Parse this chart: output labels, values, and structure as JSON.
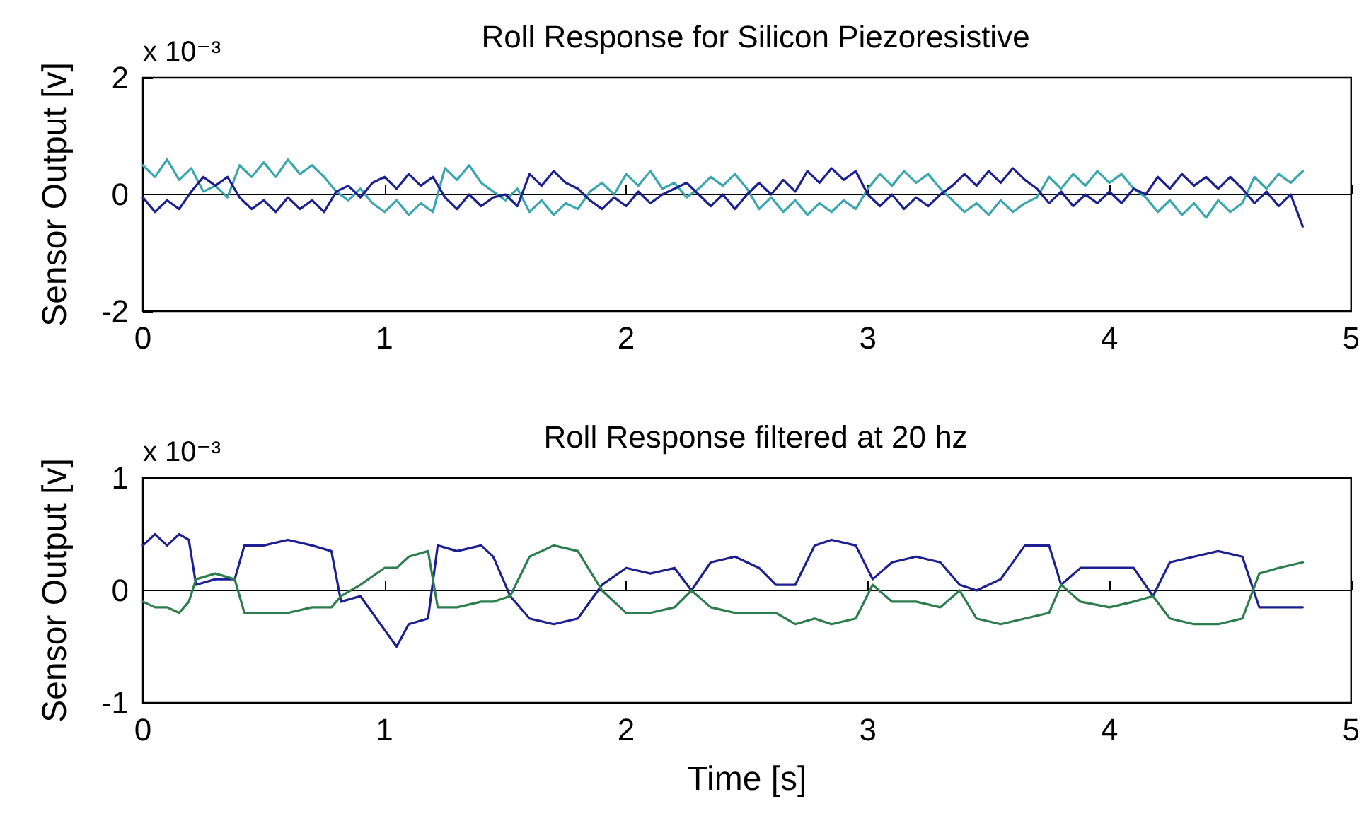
{
  "chart_data": [
    {
      "type": "line",
      "title": "Roll Response for Silicon Piezoresistive",
      "ylabel": "Sensor Output [v]",
      "annotations": [
        "x 10⁻³"
      ],
      "xlim": [
        0,
        5
      ],
      "xticks": [
        0,
        1,
        2,
        3,
        4,
        5
      ],
      "ylim": [
        -2,
        2
      ],
      "yticks": [
        -2,
        0,
        2
      ],
      "x": [
        0,
        0.05,
        0.1,
        0.15,
        0.2,
        0.25,
        0.3,
        0.35,
        0.4,
        0.45,
        0.5,
        0.55,
        0.6,
        0.65,
        0.7,
        0.75,
        0.8,
        0.85,
        0.9,
        0.95,
        1,
        1.05,
        1.1,
        1.15,
        1.2,
        1.25,
        1.3,
        1.35,
        1.4,
        1.45,
        1.5,
        1.55,
        1.6,
        1.65,
        1.7,
        1.75,
        1.8,
        1.85,
        1.9,
        1.95,
        2,
        2.05,
        2.1,
        2.15,
        2.2,
        2.25,
        2.3,
        2.35,
        2.4,
        2.45,
        2.5,
        2.55,
        2.6,
        2.65,
        2.7,
        2.75,
        2.8,
        2.85,
        2.9,
        2.95,
        3,
        3.05,
        3.1,
        3.15,
        3.2,
        3.25,
        3.3,
        3.35,
        3.4,
        3.45,
        3.5,
        3.55,
        3.6,
        3.65,
        3.7,
        3.75,
        3.8,
        3.85,
        3.9,
        3.95,
        4,
        4.05,
        4.1,
        4.15,
        4.2,
        4.25,
        4.3,
        4.35,
        4.4,
        4.45,
        4.5,
        4.55,
        4.6,
        4.65,
        4.7,
        4.75,
        4.8
      ],
      "series": [
        {
          "color": "#3aa6b0",
          "values": [
            0.5,
            0.3,
            0.6,
            0.25,
            0.45,
            0.05,
            0.15,
            -0.05,
            0.5,
            0.3,
            0.55,
            0.3,
            0.6,
            0.35,
            0.5,
            0.3,
            0.05,
            -0.1,
            0.1,
            -0.15,
            -0.3,
            -0.1,
            -0.35,
            -0.15,
            -0.3,
            0.45,
            0.25,
            0.5,
            0.2,
            0.05,
            -0.1,
            0.1,
            -0.3,
            -0.1,
            -0.35,
            -0.15,
            -0.25,
            0.05,
            0.2,
            0.0,
            0.35,
            0.15,
            0.4,
            0.1,
            0.2,
            -0.05,
            0.1,
            0.3,
            0.15,
            0.35,
            0.1,
            -0.25,
            -0.05,
            -0.3,
            -0.1,
            -0.35,
            -0.15,
            -0.3,
            -0.1,
            -0.25,
            0.1,
            0.35,
            0.15,
            0.4,
            0.2,
            0.35,
            0.1,
            -0.1,
            -0.3,
            -0.15,
            -0.35,
            -0.1,
            -0.3,
            -0.15,
            -0.05,
            0.3,
            0.1,
            0.35,
            0.15,
            0.4,
            0.2,
            0.35,
            0.1,
            -0.05,
            -0.3,
            -0.1,
            -0.35,
            -0.15,
            -0.4,
            -0.1,
            -0.3,
            -0.15,
            0.3,
            0.1,
            0.35,
            0.2,
            0.4
          ]
        },
        {
          "color": "#1c2090",
          "values": [
            -0.05,
            -0.3,
            -0.1,
            -0.25,
            0.05,
            0.3,
            0.15,
            0.3,
            -0.05,
            -0.25,
            -0.1,
            -0.3,
            -0.05,
            -0.25,
            -0.1,
            -0.3,
            0.05,
            0.15,
            -0.05,
            0.2,
            0.3,
            0.1,
            0.35,
            0.15,
            0.3,
            -0.05,
            -0.25,
            0.0,
            -0.2,
            -0.05,
            0.0,
            -0.2,
            0.35,
            0.15,
            0.4,
            0.2,
            0.1,
            -0.1,
            -0.25,
            -0.05,
            -0.2,
            0.05,
            -0.15,
            0.0,
            0.1,
            0.2,
            0.0,
            -0.2,
            0.0,
            -0.25,
            0.0,
            0.2,
            0.0,
            0.25,
            0.05,
            0.4,
            0.2,
            0.45,
            0.25,
            0.4,
            0.0,
            -0.2,
            0.0,
            -0.25,
            -0.05,
            -0.2,
            0.0,
            0.15,
            0.35,
            0.15,
            0.4,
            0.2,
            0.45,
            0.25,
            0.1,
            -0.15,
            0.05,
            -0.2,
            0.0,
            -0.15,
            0.05,
            -0.15,
            0.1,
            0.0,
            0.3,
            0.1,
            0.35,
            0.15,
            0.3,
            0.1,
            0.3,
            0.1,
            -0.15,
            0.05,
            -0.2,
            0.0,
            -0.55
          ]
        }
      ]
    },
    {
      "type": "line",
      "title": "Roll Response filtered at 20 hz",
      "xlabel": "Time [s]",
      "ylabel": "Sensor Output [v]",
      "annotations": [
        "x 10⁻³"
      ],
      "xlim": [
        0,
        5
      ],
      "xticks": [
        0,
        1,
        2,
        3,
        4,
        5
      ],
      "ylim": [
        -1,
        1
      ],
      "yticks": [
        -1,
        0,
        1
      ],
      "x": [
        0,
        0.05,
        0.1,
        0.15,
        0.19,
        0.22,
        0.3,
        0.38,
        0.42,
        0.5,
        0.6,
        0.7,
        0.78,
        0.82,
        0.9,
        1.0,
        1.05,
        1.1,
        1.18,
        1.22,
        1.3,
        1.4,
        1.45,
        1.52,
        1.6,
        1.7,
        1.8,
        1.9,
        2.0,
        2.1,
        2.2,
        2.27,
        2.35,
        2.45,
        2.55,
        2.62,
        2.7,
        2.78,
        2.85,
        2.95,
        3.02,
        3.1,
        3.2,
        3.3,
        3.38,
        3.45,
        3.55,
        3.65,
        3.75,
        3.8,
        3.88,
        4.0,
        4.1,
        4.18,
        4.25,
        4.35,
        4.45,
        4.55,
        4.62,
        4.7,
        4.8
      ],
      "series": [
        {
          "color": "#1c2090",
          "values": [
            0.4,
            0.5,
            0.4,
            0.5,
            0.45,
            0.05,
            0.1,
            0.1,
            0.4,
            0.4,
            0.45,
            0.4,
            0.35,
            -0.1,
            -0.05,
            -0.35,
            -0.5,
            -0.3,
            -0.25,
            0.4,
            0.35,
            0.4,
            0.3,
            -0.05,
            -0.25,
            -0.3,
            -0.25,
            0.05,
            0.2,
            0.15,
            0.2,
            0,
            0.25,
            0.3,
            0.2,
            0.05,
            0.05,
            0.4,
            0.45,
            0.4,
            0.1,
            0.25,
            0.3,
            0.25,
            0.05,
            0,
            0.1,
            0.4,
            0.4,
            0.05,
            0.2,
            0.2,
            0.2,
            -0.05,
            0.25,
            0.3,
            0.35,
            0.3,
            -0.15,
            -0.15,
            -0.15
          ]
        },
        {
          "color": "#2e7d4f",
          "values": [
            -0.1,
            -0.15,
            -0.15,
            -0.2,
            -0.1,
            0.1,
            0.15,
            0.1,
            -0.2,
            -0.2,
            -0.2,
            -0.15,
            -0.15,
            -0.05,
            0.05,
            0.2,
            0.2,
            0.3,
            0.35,
            -0.15,
            -0.15,
            -0.1,
            -0.1,
            -0.05,
            0.3,
            0.4,
            0.35,
            0,
            -0.2,
            -0.2,
            -0.15,
            0,
            -0.15,
            -0.2,
            -0.2,
            -0.2,
            -0.3,
            -0.25,
            -0.3,
            -0.25,
            0.05,
            -0.1,
            -0.1,
            -0.15,
            0,
            -0.25,
            -0.3,
            -0.25,
            -0.2,
            0.05,
            -0.1,
            -0.15,
            -0.1,
            -0.05,
            -0.25,
            -0.3,
            -0.3,
            -0.25,
            0.15,
            0.2,
            0.25
          ]
        }
      ]
    }
  ]
}
